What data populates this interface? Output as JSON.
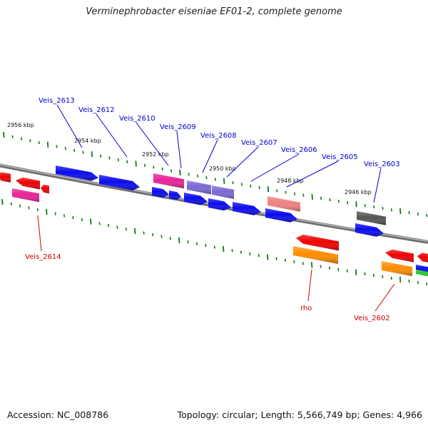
{
  "title": "Verminephrobacter eiseniae EF01-2, complete genome",
  "footer": {
    "accession": "Accession: NC_008786",
    "summary": "Topology: circular; Length: 5,566,749 bp; Genes: 4,966"
  },
  "scale_labels": [
    "2956 kbp",
    "2954 kbp",
    "2952 kbp",
    "2950 kbp",
    "2948 kbp",
    "2946 kbp"
  ],
  "gene_labels_top": [
    "Veis_2613",
    "Veis_2612",
    "Veis_2610",
    "Veis_2609",
    "Veis_2608",
    "Veis_2607",
    "Veis_2606",
    "Veis_2605",
    "Veis_2603"
  ],
  "gene_labels_bottom": [
    "Veis_2614",
    "rho",
    "Veis_2602"
  ],
  "colors": {
    "forward_label": "#0000cc",
    "reverse_label": "#cc0000",
    "backbone": "#808080",
    "tick": "#117711",
    "blue": "#0a0af0",
    "pink": "#e8239a",
    "lavender": "#7b68d6",
    "salmon": "#ee8080",
    "gray": "#555555",
    "red": "#ee0000",
    "orange": "#ff8c00",
    "green": "#22cc22"
  }
}
